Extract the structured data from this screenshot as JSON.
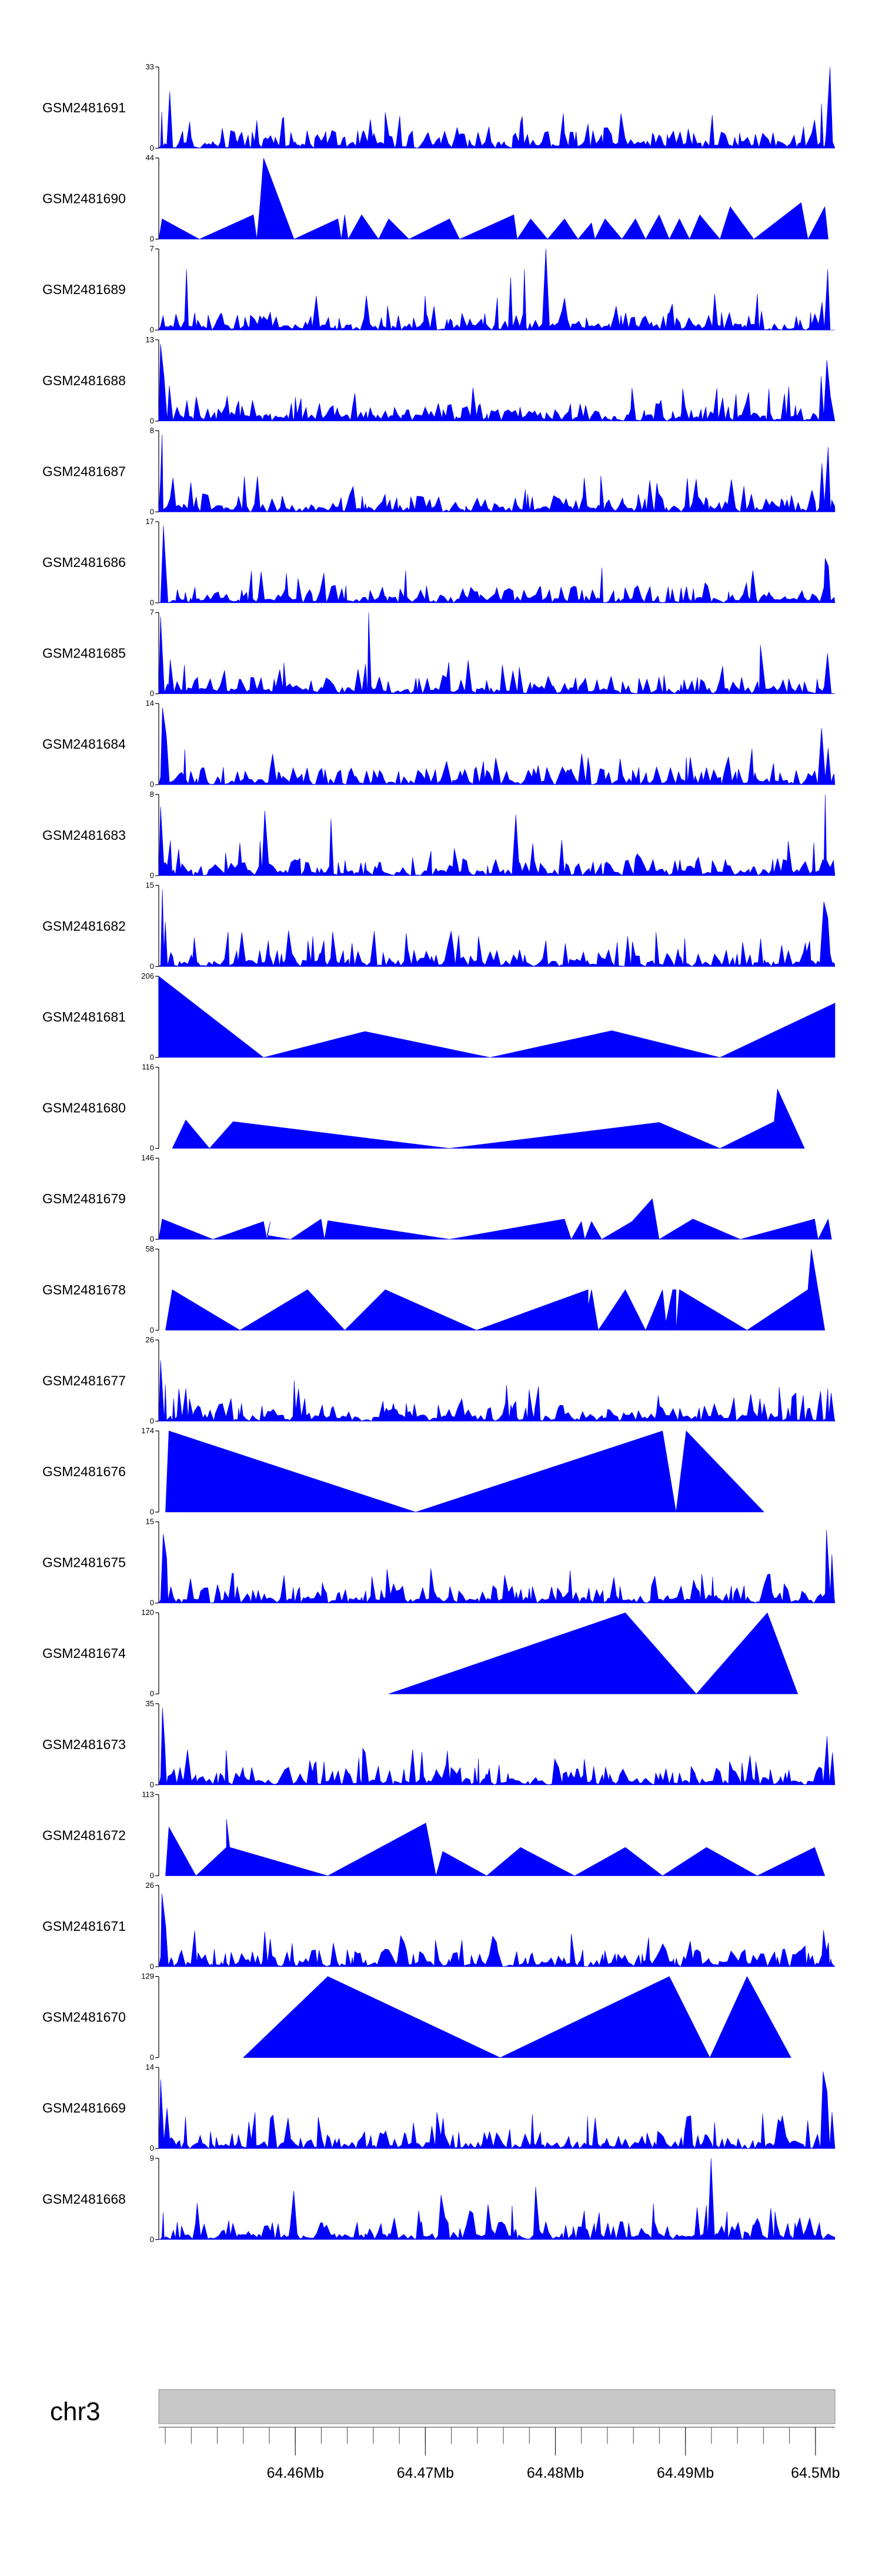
{
  "chart_data": {
    "type": "area",
    "title": "",
    "xlabel": "",
    "ylabel": "",
    "fill_color": "#0000ff",
    "axis_color": "#000000",
    "chromosome": {
      "label": "chr3",
      "bar_color": "#c8c8c8",
      "range_mb": [
        64.4495,
        64.5015
      ],
      "tick_labels": [
        "64.46Mb",
        "64.47Mb",
        "64.48Mb",
        "64.49Mb",
        "64.5Mb"
      ],
      "tick_values_mb": [
        64.46,
        64.47,
        64.48,
        64.49,
        64.5
      ]
    },
    "tracks": [
      {
        "name": "GSM2481691",
        "ymax": 33,
        "style": "dense",
        "seed": 11,
        "peaks": [
          [
            0.005,
            0.45
          ],
          [
            0.015,
            0.7
          ],
          [
            0.99,
            1.0
          ],
          [
            0.98,
            0.55
          ],
          [
            0.97,
            0.35
          ]
        ]
      },
      {
        "name": "GSM2481690",
        "ymax": 44,
        "style": "sparse",
        "points": [
          [
            0.0,
            0
          ],
          [
            0.005,
            0.25
          ],
          [
            0.06,
            0
          ],
          [
            0.14,
            0.3
          ],
          [
            0.145,
            0
          ],
          [
            0.15,
            0.45
          ],
          [
            0.155,
            1.0
          ],
          [
            0.2,
            0
          ],
          [
            0.265,
            0.25
          ],
          [
            0.27,
            0
          ],
          [
            0.275,
            0.3
          ],
          [
            0.28,
            0
          ],
          [
            0.3,
            0.3
          ],
          [
            0.325,
            0
          ],
          [
            0.34,
            0.25
          ],
          [
            0.37,
            0
          ],
          [
            0.43,
            0.25
          ],
          [
            0.445,
            0
          ],
          [
            0.525,
            0.3
          ],
          [
            0.53,
            0
          ],
          [
            0.55,
            0.25
          ],
          [
            0.575,
            0
          ],
          [
            0.6,
            0.25
          ],
          [
            0.62,
            0
          ],
          [
            0.64,
            0.2
          ],
          [
            0.645,
            0
          ],
          [
            0.66,
            0.25
          ],
          [
            0.685,
            0
          ],
          [
            0.705,
            0.25
          ],
          [
            0.72,
            0
          ],
          [
            0.74,
            0.3
          ],
          [
            0.755,
            0
          ],
          [
            0.77,
            0.25
          ],
          [
            0.785,
            0
          ],
          [
            0.8,
            0.3
          ],
          [
            0.83,
            0
          ],
          [
            0.845,
            0.4
          ],
          [
            0.88,
            0
          ],
          [
            0.95,
            0.45
          ],
          [
            0.96,
            0
          ],
          [
            0.985,
            0.4
          ],
          [
            0.99,
            0
          ]
        ]
      },
      {
        "name": "GSM2481689",
        "ymax": 7,
        "style": "dense",
        "seed": 23,
        "peaks": [
          [
            0.575,
            1.0
          ],
          [
            0.54,
            0.75
          ],
          [
            0.52,
            0.65
          ],
          [
            0.04,
            0.75
          ],
          [
            0.99,
            0.75
          ]
        ]
      },
      {
        "name": "GSM2481688",
        "ymax": 13,
        "style": "dense",
        "seed": 31,
        "peaks": [
          [
            0.005,
            0.95
          ],
          [
            0.01,
            0.55
          ],
          [
            0.98,
            0.55
          ],
          [
            0.99,
            0.75
          ],
          [
            0.995,
            0.3
          ]
        ]
      },
      {
        "name": "GSM2481687",
        "ymax": 8,
        "style": "dense",
        "seed": 41,
        "peaks": [
          [
            0.005,
            0.95
          ],
          [
            0.99,
            0.8
          ],
          [
            0.98,
            0.6
          ]
        ]
      },
      {
        "name": "GSM2481686",
        "ymax": 17,
        "style": "dense",
        "seed": 53,
        "peaks": [
          [
            0.005,
            0.95
          ],
          [
            0.01,
            0.6
          ],
          [
            0.985,
            0.55
          ],
          [
            0.99,
            0.45
          ]
        ]
      },
      {
        "name": "GSM2481685",
        "ymax": 7,
        "style": "dense",
        "seed": 61,
        "peaks": [
          [
            0.31,
            1.0
          ],
          [
            0.005,
            0.95
          ],
          [
            0.89,
            0.6
          ],
          [
            0.99,
            0.5
          ]
        ]
      },
      {
        "name": "GSM2481684",
        "ymax": 14,
        "style": "dense",
        "seed": 71,
        "peaks": [
          [
            0.005,
            0.95
          ],
          [
            0.01,
            0.6
          ],
          [
            0.98,
            0.7
          ],
          [
            0.99,
            0.45
          ],
          [
            0.555,
            0.2
          ]
        ]
      },
      {
        "name": "GSM2481683",
        "ymax": 8,
        "style": "dense",
        "seed": 83,
        "peaks": [
          [
            0.005,
            0.85
          ],
          [
            0.985,
            1.0
          ],
          [
            0.155,
            0.8
          ],
          [
            0.255,
            0.7
          ],
          [
            0.53,
            0.75
          ]
        ]
      },
      {
        "name": "GSM2481682",
        "ymax": 15,
        "style": "dense",
        "seed": 97,
        "peaks": [
          [
            0.005,
            0.95
          ],
          [
            0.01,
            0.55
          ],
          [
            0.985,
            0.8
          ],
          [
            0.99,
            0.6
          ],
          [
            0.16,
            0.25
          ]
        ]
      },
      {
        "name": "GSM2481681",
        "ymax": 206,
        "style": "sparse",
        "points": [
          [
            0.0,
            0
          ],
          [
            0.0,
            1.0
          ],
          [
            0.155,
            0
          ],
          [
            0.305,
            0.32
          ],
          [
            0.49,
            0
          ],
          [
            0.67,
            0.33
          ],
          [
            0.83,
            0
          ],
          [
            1.0,
            0.67
          ],
          [
            1.0,
            0
          ]
        ]
      },
      {
        "name": "GSM2481680",
        "ymax": 116,
        "style": "sparse",
        "points": [
          [
            0.02,
            0
          ],
          [
            0.04,
            0.35
          ],
          [
            0.075,
            0
          ],
          [
            0.11,
            0.33
          ],
          [
            0.43,
            0
          ],
          [
            0.74,
            0.32
          ],
          [
            0.83,
            0
          ],
          [
            0.91,
            0.33
          ],
          [
            0.915,
            0.73
          ],
          [
            0.955,
            0
          ]
        ]
      },
      {
        "name": "GSM2481679",
        "ymax": 146,
        "style": "sparse",
        "points": [
          [
            0.0,
            0
          ],
          [
            0.005,
            0.25
          ],
          [
            0.08,
            0
          ],
          [
            0.155,
            0.22
          ],
          [
            0.16,
            0
          ],
          [
            0.165,
            0.22
          ],
          [
            0.16,
            0.05
          ],
          [
            0.195,
            0
          ],
          [
            0.24,
            0.25
          ],
          [
            0.245,
            0
          ],
          [
            0.25,
            0.23
          ],
          [
            0.43,
            0
          ],
          [
            0.6,
            0.25
          ],
          [
            0.61,
            0
          ],
          [
            0.625,
            0.22
          ],
          [
            0.63,
            0
          ],
          [
            0.64,
            0.22
          ],
          [
            0.655,
            0
          ],
          [
            0.7,
            0.22
          ],
          [
            0.73,
            0.5
          ],
          [
            0.74,
            0
          ],
          [
            0.79,
            0.25
          ],
          [
            0.86,
            0
          ],
          [
            0.97,
            0.25
          ],
          [
            0.975,
            0
          ],
          [
            0.99,
            0.25
          ],
          [
            0.995,
            0
          ]
        ]
      },
      {
        "name": "GSM2481678",
        "ymax": 58,
        "style": "sparse",
        "points": [
          [
            0.01,
            0
          ],
          [
            0.02,
            0.5
          ],
          [
            0.12,
            0
          ],
          [
            0.22,
            0.5
          ],
          [
            0.275,
            0
          ],
          [
            0.335,
            0.5
          ],
          [
            0.47,
            0
          ],
          [
            0.635,
            0.5
          ],
          [
            0.635,
            0.3
          ],
          [
            0.64,
            0.5
          ],
          [
            0.65,
            0
          ],
          [
            0.69,
            0.5
          ],
          [
            0.72,
            0
          ],
          [
            0.745,
            0.5
          ],
          [
            0.75,
            0.1
          ],
          [
            0.76,
            0.5
          ],
          [
            0.765,
            0.5
          ],
          [
            0.765,
            0
          ],
          [
            0.77,
            0.5
          ],
          [
            0.87,
            0
          ],
          [
            0.96,
            0.5
          ],
          [
            0.965,
            1.0
          ],
          [
            0.985,
            0
          ]
        ]
      },
      {
        "name": "GSM2481677",
        "ymax": 26,
        "style": "dense",
        "seed": 113,
        "peaks": [
          [
            0.005,
            0.75
          ],
          [
            0.01,
            0.45
          ],
          [
            0.2,
            0.5
          ],
          [
            0.205,
            0.4
          ],
          [
            0.99,
            0.4
          ],
          [
            0.995,
            0.35
          ]
        ]
      },
      {
        "name": "GSM2481676",
        "ymax": 174,
        "style": "sparse",
        "points": [
          [
            0.01,
            0
          ],
          [
            0.015,
            1.0
          ],
          [
            0.38,
            0
          ],
          [
            0.745,
            1.0
          ],
          [
            0.765,
            0
          ],
          [
            0.78,
            1.0
          ],
          [
            0.895,
            0
          ]
        ]
      },
      {
        "name": "GSM2481675",
        "ymax": 15,
        "style": "dense",
        "seed": 131,
        "peaks": [
          [
            0.005,
            0.85
          ],
          [
            0.01,
            0.55
          ],
          [
            0.99,
            0.9
          ],
          [
            0.995,
            0.6
          ],
          [
            0.9,
            0.35
          ]
        ]
      },
      {
        "name": "GSM2481674",
        "ymax": 120,
        "style": "sparse",
        "points": [
          [
            0.34,
            0
          ],
          [
            0.69,
            1.0
          ],
          [
            0.795,
            0
          ],
          [
            0.9,
            1.0
          ],
          [
            0.945,
            0
          ]
        ]
      },
      {
        "name": "GSM2481673",
        "ymax": 35,
        "style": "dense",
        "seed": 151,
        "peaks": [
          [
            0.005,
            0.95
          ],
          [
            0.01,
            0.5
          ],
          [
            0.99,
            0.6
          ],
          [
            0.995,
            0.4
          ]
        ]
      },
      {
        "name": "GSM2481672",
        "ymax": 113,
        "style": "sparse",
        "points": [
          [
            0.01,
            0
          ],
          [
            0.015,
            0.6
          ],
          [
            0.055,
            0
          ],
          [
            0.1,
            0.35
          ],
          [
            0.1,
            0.7
          ],
          [
            0.105,
            0.35
          ],
          [
            0.25,
            0
          ],
          [
            0.395,
            0.65
          ],
          [
            0.41,
            0
          ],
          [
            0.42,
            0.3
          ],
          [
            0.485,
            0
          ],
          [
            0.535,
            0.35
          ],
          [
            0.615,
            0
          ],
          [
            0.69,
            0.35
          ],
          [
            0.745,
            0
          ],
          [
            0.81,
            0.35
          ],
          [
            0.885,
            0
          ],
          [
            0.97,
            0.35
          ],
          [
            0.985,
            0
          ]
        ]
      },
      {
        "name": "GSM2481671",
        "ymax": 26,
        "style": "dense",
        "seed": 173,
        "peaks": [
          [
            0.005,
            0.9
          ],
          [
            0.01,
            0.5
          ],
          [
            0.985,
            0.45
          ],
          [
            0.99,
            0.3
          ]
        ]
      },
      {
        "name": "GSM2481670",
        "ymax": 129,
        "style": "sparse",
        "points": [
          [
            0.125,
            0
          ],
          [
            0.25,
            1.0
          ],
          [
            0.505,
            0
          ],
          [
            0.755,
            1.0
          ],
          [
            0.815,
            0
          ],
          [
            0.87,
            1.0
          ],
          [
            0.935,
            0
          ]
        ]
      },
      {
        "name": "GSM2481669",
        "ymax": 14,
        "style": "dense",
        "seed": 191,
        "peaks": [
          [
            0.005,
            0.85
          ],
          [
            0.01,
            0.5
          ],
          [
            0.985,
            0.95
          ],
          [
            0.99,
            0.7
          ],
          [
            0.995,
            0.45
          ]
        ]
      },
      {
        "name": "GSM2481668",
        "ymax": 9,
        "style": "dense",
        "seed": 199,
        "peaks": [
          [
            0.815,
            1.0
          ],
          [
            0.56,
            0.65
          ],
          [
            0.2,
            0.6
          ],
          [
            0.42,
            0.55
          ]
        ]
      }
    ]
  }
}
